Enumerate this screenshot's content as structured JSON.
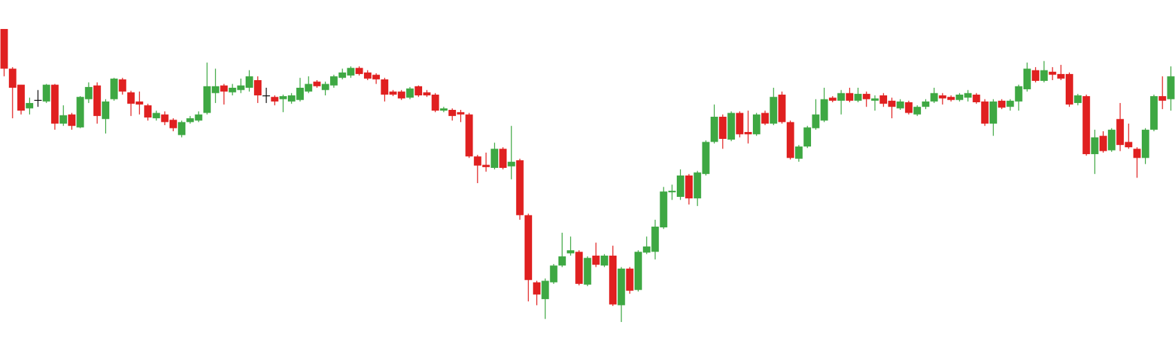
{
  "chart_data": {
    "type": "candlestick",
    "up_color": "#3ea843",
    "down_color": "#e02020",
    "flat_color": "#111111",
    "ylim": [
      0,
      460
    ],
    "series": [
      {
        "open": [
          422,
          370,
          349,
          318,
          329,
          327,
          349,
          298,
          310,
          293,
          330,
          348,
          304,
          330,
          356,
          339,
          327,
          322,
          305,
          310,
          303,
          283,
          300,
          302,
          312,
          338,
          348,
          339,
          342,
          345,
          355,
          335,
          333,
          330,
          327,
          329,
          340,
          353,
          342,
          348,
          358,
          361,
          371,
          365,
          362,
          356,
          340,
          340,
          332,
          347,
          339,
          336,
          315,
          316,
          313,
          310,
          255,
          244,
          240,
          265,
          242,
          250,
          178,
          90,
          68,
          90,
          112,
          128,
          130,
          87,
          125,
          112,
          125,
          60,
          108,
          80,
          129,
          130,
          162,
          208,
          202,
          230,
          200,
          232,
          274,
          307,
          277,
          312,
          287,
          284,
          312,
          298,
          336,
          300,
          252,
          268,
          292,
          302,
          332,
          328,
          338,
          328,
          337,
          328,
          335,
          328,
          318,
          326,
          310,
          320,
          327,
          335,
          333,
          329,
          332,
          336,
          327,
          298,
          328,
          320,
          327,
          343,
          368,
          354,
          366,
          363,
          363,
          325,
          334,
          258,
          282,
          263,
          304,
          274,
          265,
          253,
          290,
          334,
          330
        ],
        "high": [
          422,
          372,
          349,
          332,
          342,
          350,
          350,
          322,
          312,
          334,
          352,
          352,
          330,
          358,
          358,
          341,
          340,
          324,
          315,
          314,
          305,
          302,
          308,
          314,
          378,
          370,
          350,
          350,
          357,
          368,
          360,
          345,
          335,
          336,
          338,
          358,
          360,
          355,
          353,
          362,
          370,
          373,
          373,
          368,
          364,
          358,
          342,
          342,
          346,
          348,
          342,
          338,
          320,
          318,
          316,
          312,
          257,
          260,
          273,
          267,
          295,
          252,
          180,
          92,
          95,
          114,
          155,
          150,
          132,
          124,
          142,
          127,
          138,
          110,
          110,
          132,
          150,
          172,
          215,
          218,
          238,
          232,
          236,
          276,
          323,
          310,
          314,
          314,
          315,
          312,
          315,
          345,
          340,
          302,
          270,
          295,
          330,
          345,
          334,
          342,
          345,
          345,
          340,
          335,
          338,
          332,
          330,
          328,
          322,
          330,
          345,
          338,
          335,
          338,
          342,
          338,
          330,
          330,
          330,
          330,
          349,
          378,
          372,
          380,
          372,
          375,
          365,
          337,
          336,
          290,
          288,
          292,
          325,
          298,
          267,
          292,
          336,
          360,
          373
        ],
        "low": [
          360,
          305,
          310,
          310,
          320,
          325,
          290,
          295,
          290,
          292,
          325,
          298,
          285,
          328,
          336,
          308,
          310,
          302,
          302,
          296,
          288,
          280,
          298,
          300,
          310,
          325,
          323,
          335,
          338,
          340,
          325,
          325,
          322,
          313,
          324,
          327,
          338,
          345,
          335,
          345,
          356,
          358,
          361,
          355,
          350,
          327,
          334,
          329,
          330,
          333,
          333,
          313,
          313,
          302,
          300,
          253,
          220,
          235,
          238,
          238,
          225,
          172,
          65,
          60,
          42,
          88,
          110,
          125,
          86,
          85,
          110,
          110,
          59,
          38,
          75,
          78,
          127,
          120,
          160,
          198,
          198,
          192,
          190,
          230,
          272,
          265,
          275,
          280,
          272,
          282,
          296,
          296,
          298,
          251,
          248,
          266,
          290,
          300,
          326,
          310,
          326,
          326,
          320,
          315,
          320,
          305,
          316,
          310,
          308,
          317,
          325,
          323,
          327,
          327,
          327,
          324,
          295,
          282,
          317,
          315,
          315,
          340,
          352,
          352,
          355,
          355,
          320,
          322,
          256,
          232,
          260,
          261,
          262,
          265,
          227,
          245,
          288,
          317,
          315
        ],
        "close": [
          370,
          345,
          315,
          325,
          329,
          349,
          298,
          309,
          295,
          333,
          346,
          308,
          327,
          357,
          340,
          324,
          323,
          306,
          312,
          300,
          292,
          300,
          305,
          310,
          347,
          347,
          340,
          345,
          348,
          360,
          335,
          335,
          327,
          334,
          335,
          345,
          350,
          347,
          350,
          360,
          365,
          371,
          363,
          357,
          356,
          336,
          336,
          331,
          344,
          335,
          335,
          315,
          318,
          308,
          310,
          255,
          243,
          241,
          265,
          240,
          248,
          178,
          93,
          74,
          92,
          112,
          124,
          132,
          88,
          122,
          113,
          125,
          61,
          108,
          79,
          130,
          137,
          163,
          209,
          210,
          230,
          200,
          234,
          274,
          307,
          278,
          312,
          284,
          284,
          310,
          298,
          333,
          300,
          253,
          268,
          293,
          310,
          330,
          328,
          338,
          328,
          337,
          330,
          331,
          324,
          320,
          327,
          312,
          320,
          327,
          338,
          331,
          329,
          336,
          338,
          326,
          298,
          327,
          319,
          328,
          347,
          370,
          354,
          368,
          362,
          357,
          323,
          335,
          258,
          280,
          262,
          290,
          270,
          267,
          253,
          290,
          334,
          328,
          360
        ]
      }
    ]
  }
}
